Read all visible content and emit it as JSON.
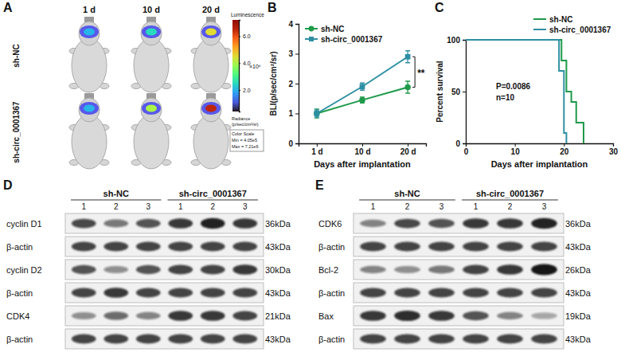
{
  "panel_labels": [
    "A",
    "B",
    "C",
    "D",
    "E"
  ],
  "imaging": {
    "timepoints": [
      "1 d",
      "10 d",
      "20 d"
    ],
    "groups": [
      "sh-NC",
      "sh-circ_0001367"
    ],
    "signal": [
      [
        2.0,
        2.5,
        4.5
      ],
      [
        2.0,
        4.0,
        6.5
      ]
    ],
    "colorbar": {
      "title": "Luminescence",
      "range": [
        0.405,
        7.21
      ],
      "ticks": [
        {
          "value": 2,
          "label": "2.0"
        },
        {
          "value": 4,
          "label": "4.0"
        },
        {
          "value": 6,
          "label": "6.0"
        }
      ],
      "multiplier": "×10⁶",
      "unit": "Radiance",
      "unit_detail": "(p/sec/cm²/sr)",
      "scale_note": [
        "Color Scale",
        "Min = 4.05e5",
        "Max = 7.21e6"
      ]
    }
  },
  "chart_data": [
    {
      "type": "line",
      "x_label": "Days after implantation",
      "y_label": "BLI(p/sec/cm²/sr)",
      "categories": [
        "1 d",
        "10 d",
        "20 d"
      ],
      "ylim": [
        0,
        4
      ],
      "yticks": [
        0,
        1,
        2,
        3,
        4
      ],
      "legend": "upper left",
      "marker": "circle",
      "annotations": [
        "**"
      ],
      "series": [
        {
          "name": "sh-NC",
          "color": "#1f9a4b",
          "values": [
            1.0,
            1.45,
            1.88
          ],
          "errors": [
            0.15,
            0.1,
            0.2
          ]
        },
        {
          "name": "sh-circ_0001367",
          "color": "#2e8fa3",
          "marker": "square",
          "values": [
            1.0,
            1.9,
            2.9
          ],
          "errors": [
            0.12,
            0.12,
            0.2
          ]
        }
      ]
    },
    {
      "type": "line",
      "line_style": "step",
      "x_label": "Days after implantation",
      "y_label": "Percent survival",
      "xlim": [
        0,
        30
      ],
      "xticks": [
        0,
        10,
        20,
        30
      ],
      "ylim": [
        0,
        100
      ],
      "yticks": [
        0,
        50,
        100
      ],
      "legend": "upper right",
      "annotations": [
        "P=0.0086",
        "n=10"
      ],
      "series": [
        {
          "name": "sh-NC",
          "color": "#1f9a4b",
          "x": [
            0,
            19.5,
            20.5,
            21.5,
            22.5,
            24
          ],
          "values": [
            100,
            80,
            50,
            40,
            20,
            0
          ]
        },
        {
          "name": "sh-circ_0001367",
          "color": "#2e8fa3",
          "x": [
            0,
            19,
            20,
            20.5
          ],
          "values": [
            100,
            70,
            10,
            0
          ]
        }
      ]
    }
  ],
  "blots": [
    {
      "groups": [
        {
          "name": "sh-NC",
          "lanes": [
            "1",
            "2",
            "3"
          ]
        },
        {
          "name": "sh-circ_0001367",
          "lanes": [
            "1",
            "2",
            "3"
          ]
        }
      ],
      "rows": [
        {
          "label": "cyclin D1",
          "size": "36kDa",
          "intensity": [
            0.75,
            0.55,
            0.7,
            0.85,
            0.95,
            0.85
          ]
        },
        {
          "label": "β-actin",
          "size": "43kDa",
          "intensity": [
            0.8,
            0.8,
            0.8,
            0.8,
            0.8,
            0.8
          ]
        },
        {
          "label": "cyclin D2",
          "size": "30kDa",
          "intensity": [
            0.7,
            0.45,
            0.7,
            0.8,
            0.8,
            0.85
          ]
        },
        {
          "label": "β-actin",
          "size": "43kDa",
          "intensity": [
            0.8,
            0.85,
            0.8,
            0.8,
            0.8,
            0.8
          ]
        },
        {
          "label": "CDK4",
          "size": "21kDa",
          "intensity": [
            0.45,
            0.6,
            0.5,
            0.85,
            0.85,
            0.8
          ]
        },
        {
          "label": "β-actin",
          "size": "43kDa",
          "intensity": [
            0.8,
            0.8,
            0.8,
            0.8,
            0.8,
            0.8
          ]
        }
      ]
    },
    {
      "groups": [
        {
          "name": "sh-NC",
          "lanes": [
            "1",
            "2",
            "3"
          ]
        },
        {
          "name": "sh-circ_0001367",
          "lanes": [
            "1",
            "2",
            "3"
          ]
        }
      ],
      "rows": [
        {
          "label": "CDK6",
          "size": "36kDa",
          "intensity": [
            0.5,
            0.75,
            0.7,
            0.85,
            0.85,
            0.95
          ]
        },
        {
          "label": "β-actin",
          "size": "43kDa",
          "intensity": [
            0.8,
            0.8,
            0.8,
            0.8,
            0.8,
            0.8
          ]
        },
        {
          "label": "Bcl-2",
          "size": "26kDa",
          "intensity": [
            0.5,
            0.45,
            0.55,
            0.8,
            0.85,
            1.0
          ]
        },
        {
          "label": "β-actin",
          "size": "43kDa",
          "intensity": [
            0.8,
            0.8,
            0.8,
            0.8,
            0.8,
            0.8
          ]
        },
        {
          "label": "Bax",
          "size": "19kDa",
          "intensity": [
            0.85,
            0.9,
            0.85,
            0.7,
            0.5,
            0.35
          ]
        },
        {
          "label": "β-actin",
          "size": "43kDa",
          "intensity": [
            0.8,
            0.8,
            0.8,
            0.8,
            0.8,
            0.8
          ]
        }
      ]
    }
  ]
}
